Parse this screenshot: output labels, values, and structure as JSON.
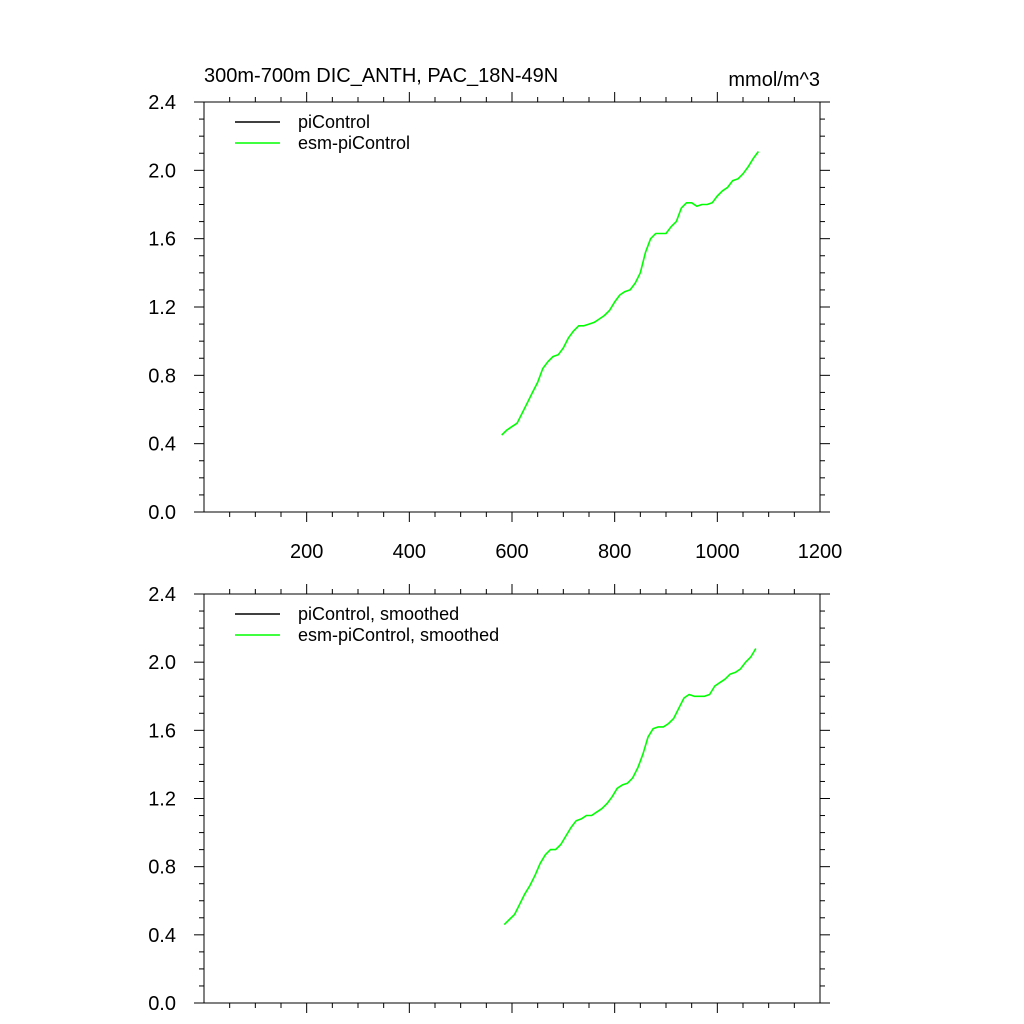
{
  "chart_data": [
    {
      "type": "line",
      "title": "300m-700m DIC_ANTH, PAC_18N-49N",
      "units": "mmol/m^3",
      "xlim": [
        0,
        1200
      ],
      "ylim": [
        0.0,
        2.4
      ],
      "x_ticks": [
        200,
        400,
        600,
        800,
        1000,
        1200
      ],
      "x_tick_labels": [
        "200",
        "400",
        "600",
        "800",
        "1000",
        "1200"
      ],
      "y_ticks": [
        0.0,
        0.4,
        0.8,
        1.2,
        1.6,
        2.0,
        2.4
      ],
      "y_tick_labels": [
        "0.0",
        "0.4",
        "0.8",
        "1.2",
        "1.6",
        "2.0",
        "2.4"
      ],
      "legend_position": "top-left",
      "series": [
        {
          "name": "piControl",
          "color": "#000000",
          "x": [],
          "values": []
        },
        {
          "name": "esm-piControl",
          "color": "#00ff00",
          "x": [
            580,
            590,
            600,
            610,
            620,
            630,
            640,
            650,
            660,
            670,
            680,
            690,
            700,
            710,
            720,
            730,
            740,
            750,
            760,
            770,
            780,
            790,
            800,
            810,
            820,
            830,
            840,
            850,
            860,
            870,
            880,
            890,
            900,
            910,
            920,
            930,
            940,
            950,
            960,
            970,
            980,
            990,
            1000,
            1010,
            1020,
            1030,
            1040,
            1050,
            1060,
            1070,
            1080
          ],
          "values": [
            0.45,
            0.48,
            0.5,
            0.52,
            0.58,
            0.64,
            0.7,
            0.76,
            0.84,
            0.88,
            0.91,
            0.92,
            0.96,
            1.02,
            1.06,
            1.09,
            1.09,
            1.1,
            1.11,
            1.13,
            1.15,
            1.18,
            1.23,
            1.27,
            1.29,
            1.3,
            1.34,
            1.4,
            1.52,
            1.6,
            1.63,
            1.63,
            1.63,
            1.67,
            1.7,
            1.78,
            1.81,
            1.81,
            1.79,
            1.8,
            1.8,
            1.81,
            1.85,
            1.88,
            1.9,
            1.94,
            1.95,
            1.98,
            2.02,
            2.07,
            2.11
          ]
        }
      ]
    },
    {
      "type": "line",
      "title": "",
      "xlim": [
        0,
        1200
      ],
      "ylim": [
        0.0,
        2.4
      ],
      "x_ticks": [
        200,
        400,
        600,
        800,
        1000,
        1200
      ],
      "y_ticks": [
        0.0,
        0.4,
        0.8,
        1.2,
        1.6,
        2.0,
        2.4
      ],
      "y_tick_labels": [
        "0.0",
        "0.4",
        "0.8",
        "1.2",
        "1.6",
        "2.0",
        "2.4"
      ],
      "legend_position": "top-left",
      "series": [
        {
          "name": "piControl, smoothed",
          "color": "#000000",
          "x": [],
          "values": []
        },
        {
          "name": "esm-piControl, smoothed",
          "color": "#00ff00",
          "x": [
            585,
            595,
            605,
            615,
            625,
            635,
            645,
            655,
            665,
            675,
            685,
            695,
            705,
            715,
            725,
            735,
            745,
            755,
            765,
            775,
            785,
            795,
            805,
            815,
            825,
            835,
            845,
            855,
            865,
            875,
            885,
            895,
            905,
            915,
            925,
            935,
            945,
            955,
            965,
            975,
            985,
            995,
            1005,
            1015,
            1025,
            1035,
            1045,
            1055,
            1065,
            1075
          ],
          "values": [
            0.46,
            0.49,
            0.52,
            0.58,
            0.64,
            0.69,
            0.75,
            0.82,
            0.87,
            0.9,
            0.9,
            0.93,
            0.98,
            1.03,
            1.07,
            1.08,
            1.1,
            1.1,
            1.12,
            1.14,
            1.17,
            1.21,
            1.26,
            1.28,
            1.29,
            1.32,
            1.38,
            1.46,
            1.56,
            1.61,
            1.62,
            1.62,
            1.64,
            1.67,
            1.73,
            1.79,
            1.81,
            1.8,
            1.8,
            1.8,
            1.81,
            1.86,
            1.88,
            1.9,
            1.93,
            1.94,
            1.96,
            2.0,
            2.03,
            2.08
          ]
        }
      ]
    }
  ]
}
